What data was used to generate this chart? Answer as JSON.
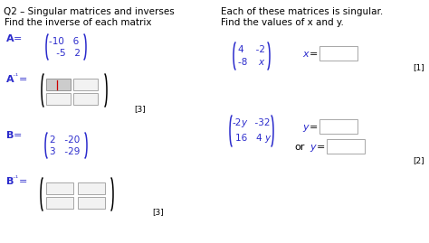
{
  "bg_color": "#ffffff",
  "title": "Q2 – Singular matrices and inverses",
  "left_heading": "Find the inverse of each matrix",
  "right_heading_1": "Each of these matrices is singular.",
  "right_heading_2": "Find the values of x and y.",
  "text_color": "#000000",
  "blue_color": "#2b2bcc",
  "figsize": [
    4.74,
    2.69
  ],
  "dpi": 100
}
